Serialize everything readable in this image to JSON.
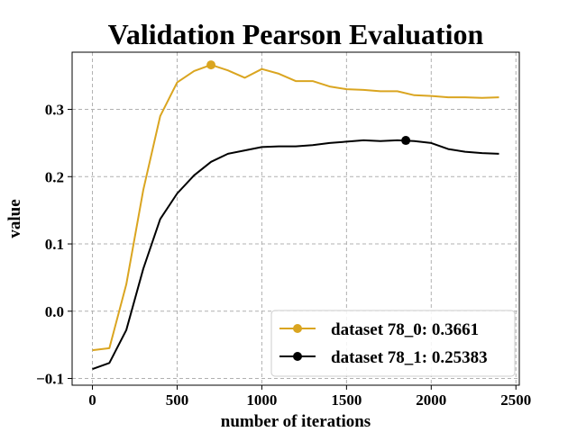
{
  "chart_data": {
    "type": "line",
    "title": "Validation Pearson Evaluation",
    "xlabel": "number of iterations",
    "ylabel": "value",
    "xlim": [
      -120,
      2520
    ],
    "ylim": [
      -0.11,
      0.385
    ],
    "xticks": [
      0,
      500,
      1000,
      1500,
      2000,
      2500
    ],
    "yticks": [
      -0.1,
      0.0,
      0.1,
      0.2,
      0.3
    ],
    "ytick_labels": [
      "−0.1",
      "0.0",
      "0.1",
      "0.2",
      "0.3"
    ],
    "grid": true,
    "legend_position": "lower-right",
    "x": [
      0,
      100,
      200,
      300,
      400,
      500,
      600,
      700,
      800,
      900,
      1000,
      1100,
      1200,
      1300,
      1400,
      1500,
      1600,
      1700,
      1800,
      1900,
      2000,
      2100,
      2200,
      2300,
      2400
    ],
    "series": [
      {
        "name": "dataset 78_0: 0.3661",
        "color": "#DAA520",
        "values": [
          -0.058,
          -0.055,
          0.04,
          0.18,
          0.29,
          0.34,
          0.357,
          0.3661,
          0.358,
          0.347,
          0.36,
          0.353,
          0.342,
          0.342,
          0.334,
          0.33,
          0.329,
          0.327,
          0.327,
          0.321,
          0.32,
          0.318,
          0.318,
          0.317,
          0.318
        ],
        "best_x": 700,
        "best_y": 0.3661
      },
      {
        "name": "dataset 78_1: 0.25383",
        "color": "#000000",
        "values": [
          -0.086,
          -0.077,
          -0.028,
          0.063,
          0.137,
          0.175,
          0.202,
          0.222,
          0.234,
          0.239,
          0.244,
          0.245,
          0.245,
          0.247,
          0.25,
          0.252,
          0.254,
          0.253,
          0.254,
          0.253,
          0.25,
          0.241,
          0.237,
          0.235,
          0.234
        ],
        "best_x": 1850,
        "best_y": 0.25383
      }
    ]
  }
}
